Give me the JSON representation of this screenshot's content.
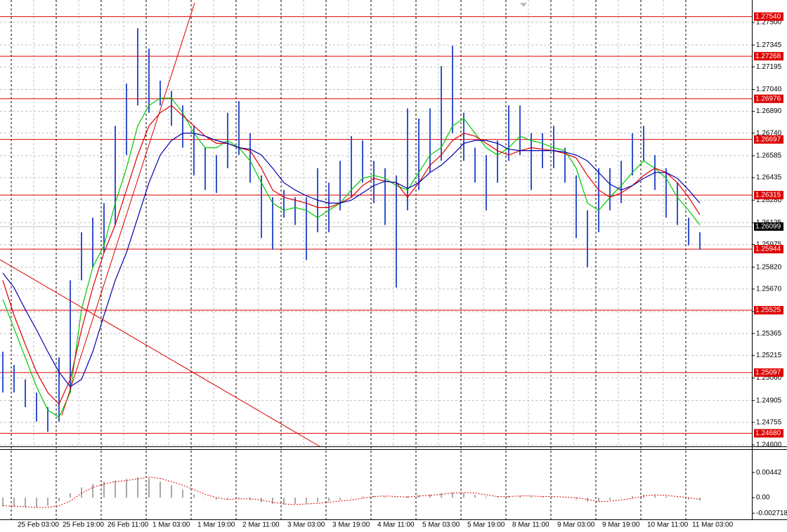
{
  "chart_data": [
    {
      "type": "hl_bars",
      "color": "#3352cc",
      "ylim": [
        1.246,
        1.27654
      ],
      "yticks": [
        {
          "value": 1.275,
          "label": "1.27500"
        },
        {
          "value": 1.27345,
          "label": "1.27345"
        },
        {
          "value": 1.27195,
          "label": "1.27195"
        },
        {
          "value": 1.2704,
          "label": "1.27040"
        },
        {
          "value": 1.2689,
          "label": "1.26890"
        },
        {
          "value": 1.2674,
          "label": "1.26740"
        },
        {
          "value": 1.26585,
          "label": "1.26585"
        },
        {
          "value": 1.26435,
          "label": "1.26435"
        },
        {
          "value": 1.2628,
          "label": "1.26280"
        },
        {
          "value": 1.26125,
          "label": "1.26125"
        },
        {
          "value": 1.25975,
          "label": "1.25975"
        },
        {
          "value": 1.2582,
          "label": "1.25820"
        },
        {
          "value": 1.2567,
          "label": "1.25670"
        },
        {
          "value": 1.25515,
          "label": "1.25515"
        },
        {
          "value": 1.25365,
          "label": "1.25365"
        },
        {
          "value": 1.25215,
          "label": "1.25215"
        },
        {
          "value": 1.2506,
          "label": "1.25060"
        },
        {
          "value": 1.24905,
          "label": "1.24905"
        },
        {
          "value": 1.24755,
          "label": "1.24755"
        },
        {
          "value": 1.246,
          "label": "1.24600"
        }
      ],
      "grid": true,
      "categories": [
        null,
        null,
        "25 Feb 03:00",
        null,
        null,
        null,
        "25 Feb 19:00",
        null,
        null,
        null,
        "26 Feb 11:00",
        null,
        null,
        null,
        "1 Mar 03:00",
        null,
        null,
        null,
        "1 Mar 19:00",
        null,
        null,
        null,
        "2 Mar 11:00",
        null,
        null,
        null,
        "3 Mar 03:00",
        null,
        null,
        null,
        "3 Mar 19:00",
        null,
        null,
        null,
        "4 Mar 11:00",
        null,
        null,
        null,
        "5 Mar 03:00",
        null,
        null,
        null,
        "5 Mar 19:00",
        null,
        null,
        null,
        "8 Mar 11:00",
        null,
        null,
        null,
        "9 Mar 03:00",
        null,
        null,
        null,
        "9 Mar 19:00",
        null,
        null,
        null,
        "10 Mar 11:00",
        null,
        null,
        null,
        "11 Mar 03:00"
      ],
      "high": [
        1.2524,
        1.2515,
        1.2505,
        1.2496,
        1.2486,
        1.252,
        1.2573,
        1.2606,
        1.2616,
        1.2626,
        1.2679,
        1.2708,
        1.2746,
        1.2732,
        1.271,
        1.2703,
        1.2693,
        1.2679,
        1.2664,
        1.2659,
        1.2688,
        1.2696,
        1.2674,
        1.2645,
        1.263,
        1.2635,
        1.263,
        1.263,
        1.265,
        1.264,
        1.2655,
        1.2672,
        1.2669,
        1.2655,
        1.265,
        1.2645,
        1.2691,
        1.2684,
        1.2691,
        1.272,
        1.2734,
        1.2688,
        1.2664,
        1.2659,
        1.2669,
        1.2693,
        1.2693,
        1.2674,
        1.2674,
        1.2679,
        1.2664,
        1.2645,
        1.2621,
        1.265,
        1.265,
        1.2655,
        1.2674,
        1.2679,
        1.2659,
        1.265,
        1.264,
        1.2616,
        1.2606
      ],
      "low": [
        1.2496,
        1.2496,
        1.2486,
        1.2476,
        1.2469,
        1.2476,
        1.2496,
        1.2573,
        1.2582,
        1.2592,
        1.2611,
        1.2659,
        1.2693,
        1.2688,
        1.2693,
        1.2679,
        1.2664,
        1.2645,
        1.2635,
        1.2633,
        1.265,
        1.2659,
        1.264,
        1.2602,
        1.2594,
        1.2616,
        1.2611,
        1.2587,
        1.2606,
        1.2606,
        1.2621,
        1.263,
        1.264,
        1.2626,
        1.2611,
        1.2568,
        1.2621,
        1.2635,
        1.2647,
        1.2655,
        1.2674,
        1.2655,
        1.264,
        1.2621,
        1.264,
        1.2655,
        1.2659,
        1.2635,
        1.265,
        1.265,
        1.264,
        1.2602,
        1.2582,
        1.2606,
        1.2621,
        1.2626,
        1.2645,
        1.2655,
        1.2635,
        1.2616,
        1.2611,
        1.2597,
        1.2594
      ],
      "moving_averages": [
        {
          "color": "#00c800",
          "values": [
            1.256,
            1.254,
            1.252,
            1.25,
            1.2484,
            1.2479,
            1.2496,
            1.2553,
            1.2582,
            1.2597,
            1.2626,
            1.265,
            1.2679,
            1.2693,
            1.2698,
            1.2698,
            1.2688,
            1.2674,
            1.2664,
            1.2664,
            1.2669,
            1.2664,
            1.2655,
            1.264,
            1.2626,
            1.2621,
            1.2623,
            1.2621,
            1.2616,
            1.2621,
            1.2626,
            1.2635,
            1.2643,
            1.2645,
            1.2643,
            1.2638,
            1.2635,
            1.2647,
            1.2659,
            1.2664,
            1.2679,
            1.2684,
            1.2674,
            1.2664,
            1.2659,
            1.2664,
            1.2672,
            1.2669,
            1.2667,
            1.2664,
            1.2662,
            1.265,
            1.2626,
            1.2621,
            1.263,
            1.2638,
            1.2647,
            1.2655,
            1.265,
            1.2643,
            1.263,
            1.2621,
            1.2611
          ]
        },
        {
          "color": "#dd0000",
          "values": [
            1.2573,
            1.2549,
            1.2529,
            1.251,
            1.2496,
            1.2488,
            1.2505,
            1.2539,
            1.2568,
            1.2592,
            1.2611,
            1.2635,
            1.2659,
            1.2679,
            1.2688,
            1.2693,
            1.2686,
            1.2679,
            1.2672,
            1.2667,
            1.2667,
            1.2664,
            1.2662,
            1.265,
            1.2635,
            1.263,
            1.2628,
            1.2626,
            1.2623,
            1.2623,
            1.2626,
            1.263,
            1.2638,
            1.2643,
            1.2641,
            1.264,
            1.263,
            1.264,
            1.2652,
            1.2659,
            1.2669,
            1.2674,
            1.2672,
            1.2667,
            1.2662,
            1.2659,
            1.2662,
            1.2664,
            1.2663,
            1.2662,
            1.266,
            1.2657,
            1.2645,
            1.2635,
            1.263,
            1.2633,
            1.2638,
            1.2645,
            1.265,
            1.2647,
            1.264,
            1.263,
            1.2618
          ]
        },
        {
          "color": "#0000aa",
          "values": [
            1.2578,
            1.2568,
            1.2553,
            1.2539,
            1.2524,
            1.251,
            1.25,
            1.2505,
            1.2524,
            1.2549,
            1.2573,
            1.2592,
            1.2616,
            1.264,
            1.2659,
            1.2669,
            1.2674,
            1.2674,
            1.2672,
            1.2669,
            1.2667,
            1.2664,
            1.2663,
            1.2659,
            1.265,
            1.264,
            1.2635,
            1.2631,
            1.2628,
            1.2626,
            1.2626,
            1.2628,
            1.2633,
            1.2638,
            1.2641,
            1.264,
            1.2636,
            1.264,
            1.2647,
            1.2652,
            1.2659,
            1.2667,
            1.2669,
            1.2669,
            1.2667,
            1.2663,
            1.2662,
            1.2662,
            1.2662,
            1.2662,
            1.2661,
            1.2659,
            1.2655,
            1.2647,
            1.2639,
            1.2635,
            1.2638,
            1.2643,
            1.2647,
            1.2647,
            1.2643,
            1.2635,
            1.2626
          ]
        }
      ],
      "levels": [
        {
          "value": 1.2754,
          "label": "1.27540"
        },
        {
          "value": 1.27268,
          "label": "1.27268"
        },
        {
          "value": 1.26976,
          "label": "1.26976"
        },
        {
          "value": 1.26697,
          "label": "1.26697"
        },
        {
          "value": 1.26315,
          "label": "1.26315"
        },
        {
          "value": 1.25944,
          "label": "1.25944"
        },
        {
          "value": 1.25525,
          "label": "1.25525"
        },
        {
          "value": 1.25097,
          "label": "1.25097"
        },
        {
          "value": 1.2468,
          "label": "1.24680"
        }
      ],
      "level_color": "#dd0000",
      "last_price": {
        "value": 1.26099,
        "label": "1.26099"
      }
    },
    {
      "type": "histogram",
      "color": "#a8a8a8",
      "signal_color": "#dd0000",
      "ylim": [
        -0.0038,
        0.0085
      ],
      "yticks": [
        0.00442,
        {
          "value": 0,
          "label": "0.00"
        },
        -0.002718
      ],
      "values": [
        -0.0015,
        -0.0016,
        -0.0017,
        -0.0017,
        -0.0014,
        -0.0006,
        0.0008,
        0.0018,
        0.0024,
        0.0028,
        0.003,
        0.0033,
        0.0036,
        0.0034,
        0.0028,
        0.0022,
        0.0014,
        0.0006,
        0.0,
        -0.0003,
        -0.0002,
        -0.0002,
        -0.0004,
        -0.0008,
        -0.0011,
        -0.0012,
        -0.0011,
        -0.001,
        -0.0008,
        -0.0006,
        -0.0004,
        -0.0001,
        0.0002,
        0.0003,
        0.0002,
        0.0001,
        0.0003,
        0.0004,
        0.0006,
        0.0008,
        0.0009,
        0.0008,
        0.0005,
        0.0002,
        0.0002,
        0.0003,
        0.0003,
        0.0002,
        0.0002,
        0.0001,
        0.0,
        -0.0003,
        -0.0007,
        -0.0006,
        -0.0004,
        -0.0001,
        0.0003,
        0.0005,
        0.0004,
        0.0002,
        0.0,
        -0.0003,
        -0.0005
      ],
      "signal": [
        -0.0014,
        -0.0015,
        -0.0016,
        -0.0017,
        -0.0017,
        -0.0014,
        -0.0006,
        0.0008,
        0.0018,
        0.0024,
        0.0028,
        0.003,
        0.0033,
        0.0036,
        0.0034,
        0.0028,
        0.0022,
        0.0014,
        0.0006,
        0.0,
        -0.0003,
        -0.0002,
        -0.0002,
        -0.0004,
        -0.0008,
        -0.0011,
        -0.0012,
        -0.0011,
        -0.001,
        -0.0008,
        -0.0006,
        -0.0004,
        -0.0001,
        0.0002,
        0.0003,
        0.0002,
        0.0001,
        0.0003,
        0.0004,
        0.0006,
        0.0008,
        0.0009,
        0.0008,
        0.0005,
        0.0002,
        0.0002,
        0.0003,
        0.0003,
        0.0002,
        0.0002,
        0.0001,
        0.0,
        -0.0003,
        -0.0007,
        -0.0006,
        -0.0004,
        -0.0001,
        0.0003,
        0.0005,
        0.0004,
        0.0002,
        0.0,
        -0.0003
      ]
    }
  ]
}
